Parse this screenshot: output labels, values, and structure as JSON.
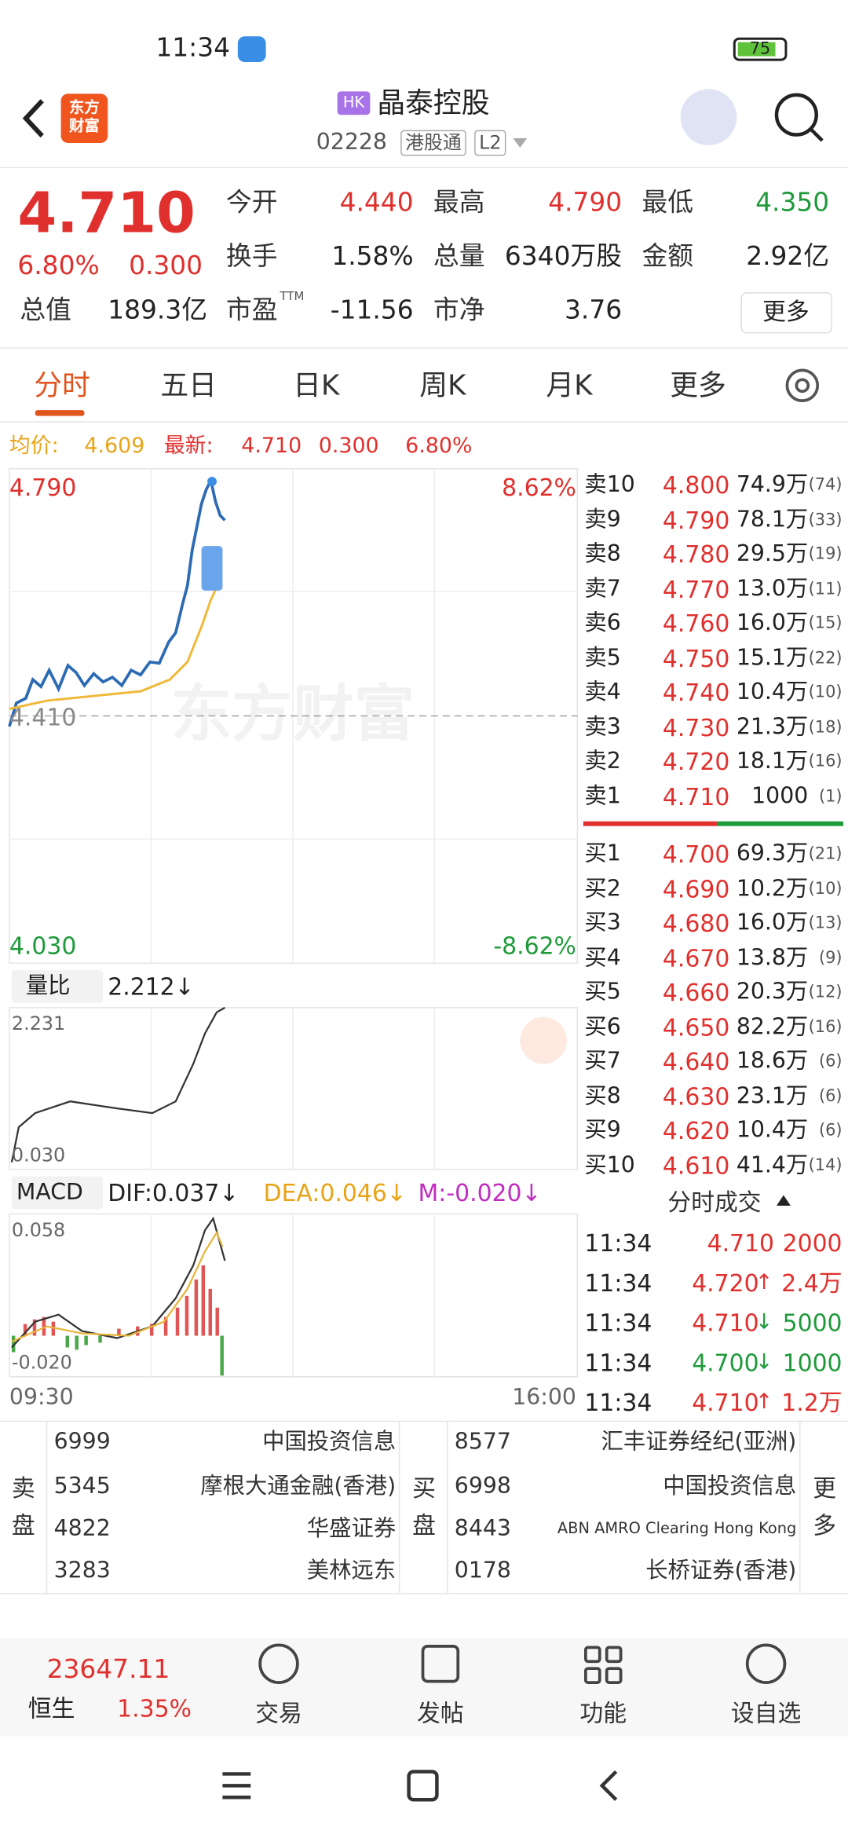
{
  "status": {
    "time": "11:34",
    "battery": "75"
  },
  "header": {
    "logo": "东方财富",
    "badge": "HK",
    "title": "晶泰控股",
    "code": "02228",
    "tags": [
      "港股通",
      "L2"
    ]
  },
  "quote": {
    "price": "4.710",
    "change_pct": "6.80%",
    "change": "0.300",
    "fields": [
      {
        "label": "今开",
        "value": "4.440"
      },
      {
        "label": "最高",
        "value": "4.790"
      },
      {
        "label": "最低",
        "value": "4.350"
      },
      {
        "label": "换手",
        "value": "1.58%"
      },
      {
        "label": "总量",
        "value": "6340万股"
      },
      {
        "label": "金额",
        "value": "2.92亿"
      },
      {
        "label": "总值",
        "value": "189.3亿"
      },
      {
        "label": "市盈",
        "sup": "TTM",
        "value": "-11.56"
      },
      {
        "label": "市净",
        "value": "3.76"
      }
    ],
    "more": "更多"
  },
  "tabs": [
    "分时",
    "五日",
    "日K",
    "周K",
    "月K",
    "更多"
  ],
  "info": {
    "avg_label": "均价:",
    "avg": "4.609",
    "latest_label": "最新:",
    "latest": "4.710",
    "change": "0.300",
    "change_pct": "6.80%"
  },
  "chart": {
    "price_high": "4.790",
    "pct_high": "8.62%",
    "prev_close": "4.410",
    "price_low": "4.030",
    "pct_low": "-8.62%",
    "watermark": "东方财富",
    "ratio_label": "量比",
    "ratio_value": "2.212↓",
    "ratio_top": "2.231",
    "ratio_bottom": "0.030",
    "macd_label": "MACD",
    "dif": "DIF:0.037↓",
    "dea": "DEA:0.046↓",
    "m": "M:-0.020↓",
    "macd_top": "0.058",
    "macd_bottom": "-0.020",
    "time_start": "09:30",
    "time_end": "16:00"
  },
  "asks": [
    {
      "label": "卖10",
      "price": "4.800",
      "volume": "74.9万",
      "count": "(74)"
    },
    {
      "label": "卖9",
      "price": "4.790",
      "volume": "78.1万",
      "count": "(33)"
    },
    {
      "label": "卖8",
      "price": "4.780",
      "volume": "29.5万",
      "count": "(19)"
    },
    {
      "label": "卖7",
      "price": "4.770",
      "volume": "13.0万",
      "count": "(11)"
    },
    {
      "label": "卖6",
      "price": "4.760",
      "volume": "16.0万",
      "count": "(15)"
    },
    {
      "label": "卖5",
      "price": "4.750",
      "volume": "15.1万",
      "count": "(22)"
    },
    {
      "label": "卖4",
      "price": "4.740",
      "volume": "10.4万",
      "count": "(10)"
    },
    {
      "label": "卖3",
      "price": "4.730",
      "volume": "21.3万",
      "count": "(18)"
    },
    {
      "label": "卖2",
      "price": "4.720",
      "volume": "18.1万",
      "count": "(16)"
    },
    {
      "label": "卖1",
      "price": "4.710",
      "volume": "1000",
      "count": "(1)"
    }
  ],
  "bids": [
    {
      "label": "买1",
      "price": "4.700",
      "volume": "69.3万",
      "count": "(21)"
    },
    {
      "label": "买2",
      "price": "4.690",
      "volume": "10.2万",
      "count": "(10)"
    },
    {
      "label": "买3",
      "price": "4.680",
      "volume": "16.0万",
      "count": "(13)"
    },
    {
      "label": "买4",
      "price": "4.670",
      "volume": "13.8万",
      "count": "(9)"
    },
    {
      "label": "买5",
      "price": "4.660",
      "volume": "20.3万",
      "count": "(12)"
    },
    {
      "label": "买6",
      "price": "4.650",
      "volume": "82.2万",
      "count": "(16)"
    },
    {
      "label": "买7",
      "price": "4.640",
      "volume": "18.6万",
      "count": "(6)"
    },
    {
      "label": "买8",
      "price": "4.630",
      "volume": "23.1万",
      "count": "(6)"
    },
    {
      "label": "买9",
      "price": "4.620",
      "volume": "10.4万",
      "count": "(6)"
    },
    {
      "label": "买10",
      "price": "4.610",
      "volume": "41.4万",
      "count": "(14)"
    }
  ],
  "trades": {
    "title": "分时成交",
    "rows": [
      {
        "time": "11:34",
        "price": "4.710",
        "volume": "2000"
      },
      {
        "time": "11:34",
        "price": "4.720",
        "arrow": "↑",
        "volume": "2.4万"
      },
      {
        "time": "11:34",
        "price": "4.710",
        "arrow": "↓",
        "volume": "5000"
      },
      {
        "time": "11:34",
        "price": "4.700",
        "arrow": "↓",
        "volume": "1000"
      },
      {
        "time": "11:34",
        "price": "4.710",
        "arrow": "↑",
        "volume": "1.2万"
      }
    ]
  },
  "brokers": {
    "sell_label": "卖盘",
    "buy_label": "买盘",
    "more": "更多",
    "sells": [
      {
        "code": "6999",
        "name": "中国投资信息"
      },
      {
        "code": "5345",
        "name": "摩根大通金融(香港)"
      },
      {
        "code": "4822",
        "name": "华盛证券"
      },
      {
        "code": "3283",
        "name": "美林远东"
      }
    ],
    "buys": [
      {
        "code": "8577",
        "name": "汇丰证券经纪(亚洲)"
      },
      {
        "code": "6998",
        "name": "中国投资信息"
      },
      {
        "code": "8443",
        "name": "ABN AMRO Clearing Hong Kong"
      },
      {
        "code": "0178",
        "name": "长桥证券(香港)"
      }
    ]
  },
  "bottom": {
    "index_value": "23647.11",
    "index_name": "恒生",
    "index_pct": "1.35%",
    "nav": [
      "交易",
      "发帖",
      "功能",
      "设自选"
    ]
  }
}
